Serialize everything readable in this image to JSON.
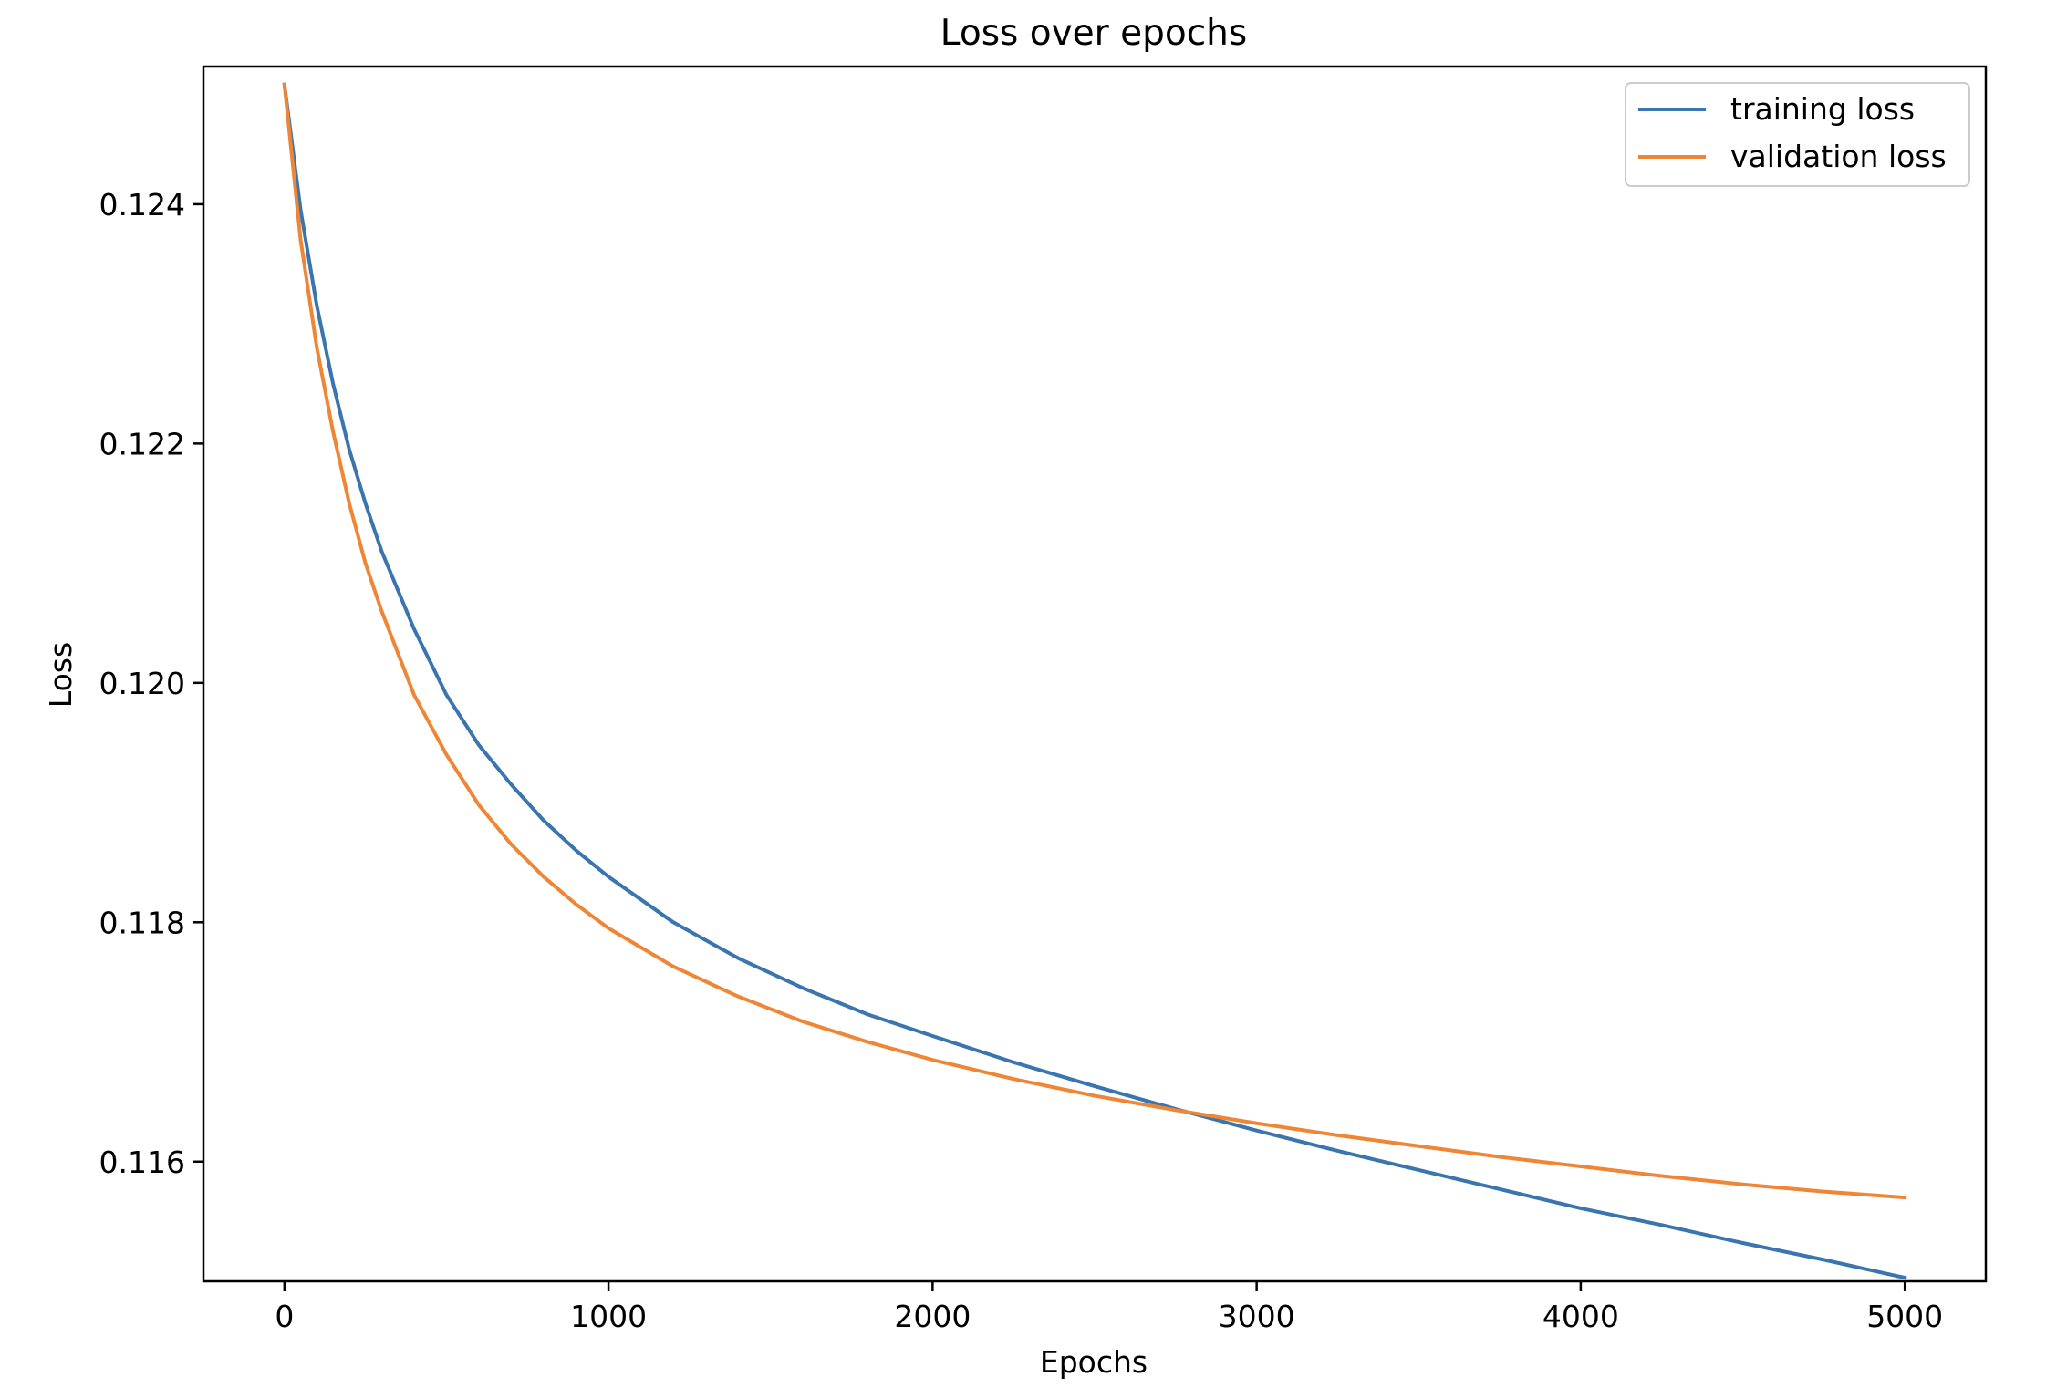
{
  "chart_data": {
    "type": "line",
    "title": "Loss over epochs",
    "xlabel": "Epochs",
    "ylabel": "Loss",
    "xlim": [
      -250,
      5250
    ],
    "ylim": [
      0.115,
      0.12515
    ],
    "xticks": [
      0,
      1000,
      2000,
      3000,
      4000,
      5000
    ],
    "xtick_labels": [
      "0",
      "1000",
      "2000",
      "3000",
      "4000",
      "5000"
    ],
    "yticks": [
      0.116,
      0.118,
      0.12,
      0.122,
      0.124
    ],
    "ytick_labels": [
      "0.116",
      "0.118",
      "0.120",
      "0.122",
      "0.124"
    ],
    "grid": false,
    "legend_position": "top-right",
    "series": [
      {
        "name": "training loss",
        "color": "#3a75b0",
        "x": [
          0,
          50,
          100,
          150,
          200,
          250,
          300,
          400,
          500,
          600,
          700,
          800,
          900,
          1000,
          1200,
          1400,
          1600,
          1800,
          2000,
          2250,
          2500,
          2750,
          3000,
          3250,
          3500,
          3750,
          4000,
          4250,
          4500,
          4750,
          5000
        ],
        "values": [
          0.125,
          0.12395,
          0.12315,
          0.1225,
          0.12195,
          0.1215,
          0.1211,
          0.12045,
          0.1199,
          0.11948,
          0.11915,
          0.11885,
          0.1186,
          0.11838,
          0.118,
          0.1177,
          0.11745,
          0.11723,
          0.11705,
          0.11683,
          0.11663,
          0.11644,
          0.11626,
          0.11609,
          0.11593,
          0.11577,
          0.11561,
          0.11547,
          0.11532,
          0.11518,
          0.11503
        ]
      },
      {
        "name": "validation loss",
        "color": "#ef8636",
        "x": [
          0,
          50,
          100,
          150,
          200,
          250,
          300,
          400,
          500,
          600,
          700,
          800,
          900,
          1000,
          1200,
          1400,
          1600,
          1800,
          2000,
          2250,
          2500,
          2750,
          3000,
          3250,
          3500,
          3750,
          4000,
          4250,
          4500,
          4750,
          5000
        ],
        "values": [
          0.125,
          0.1237,
          0.1228,
          0.1221,
          0.1215,
          0.121,
          0.1206,
          0.1199,
          0.1194,
          0.11898,
          0.11865,
          0.11838,
          0.11815,
          0.11795,
          0.11763,
          0.11738,
          0.11717,
          0.117,
          0.11685,
          0.11669,
          0.11655,
          0.11643,
          0.11632,
          0.11622,
          0.11613,
          0.11604,
          0.11596,
          0.11588,
          0.11581,
          0.11575,
          0.1157
        ]
      }
    ]
  }
}
